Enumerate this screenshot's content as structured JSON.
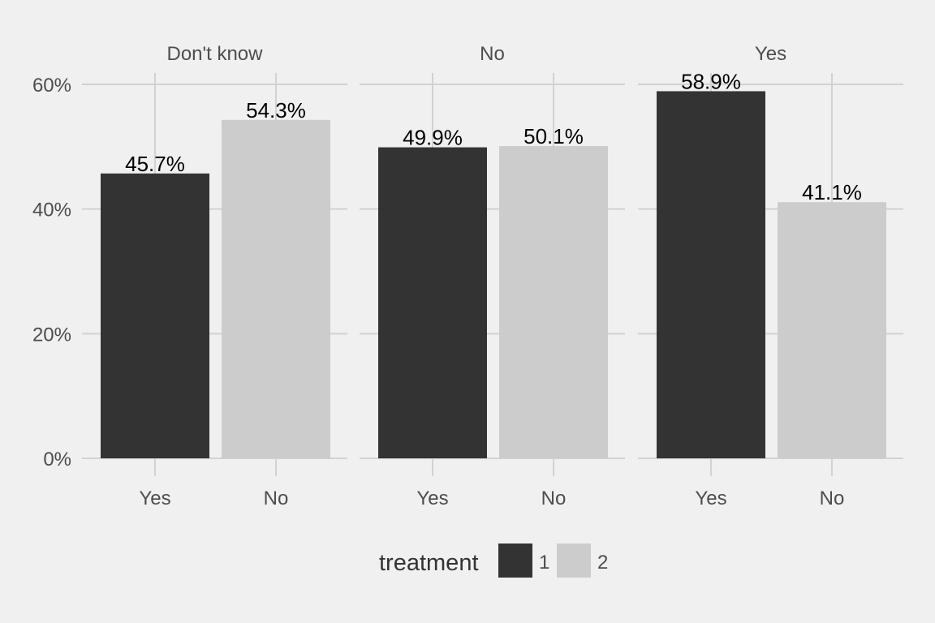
{
  "chart_data": {
    "type": "bar",
    "facets": [
      {
        "strip": "Don't know",
        "categories": [
          "Yes",
          "No"
        ],
        "values": [
          45.7,
          54.3
        ],
        "labels": [
          "45.7%",
          "54.3%"
        ],
        "treatment": [
          "1",
          "2"
        ]
      },
      {
        "strip": "No",
        "categories": [
          "Yes",
          "No"
        ],
        "values": [
          49.9,
          50.1
        ],
        "labels": [
          "49.9%",
          "50.1%"
        ],
        "treatment": [
          "1",
          "2"
        ]
      },
      {
        "strip": "Yes",
        "categories": [
          "Yes",
          "No"
        ],
        "values": [
          58.9,
          41.1
        ],
        "labels": [
          "58.9%",
          "41.1%"
        ],
        "treatment": [
          "1",
          "2"
        ]
      }
    ],
    "y_ticks": [
      0,
      20,
      40,
      60
    ],
    "y_tick_labels": [
      "0%",
      "20%",
      "40%",
      "60%"
    ],
    "ylim": [
      0,
      60
    ],
    "xlabel": "",
    "ylabel": "",
    "grid": true,
    "legend": {
      "title": "treatment",
      "placement": "bottom",
      "entries": [
        {
          "label": "1",
          "color": "#333333"
        },
        {
          "label": "2",
          "color": "#cccccc"
        }
      ]
    },
    "colors": {
      "background": "#f0f0f0",
      "grid": "#d2d2d2"
    }
  }
}
